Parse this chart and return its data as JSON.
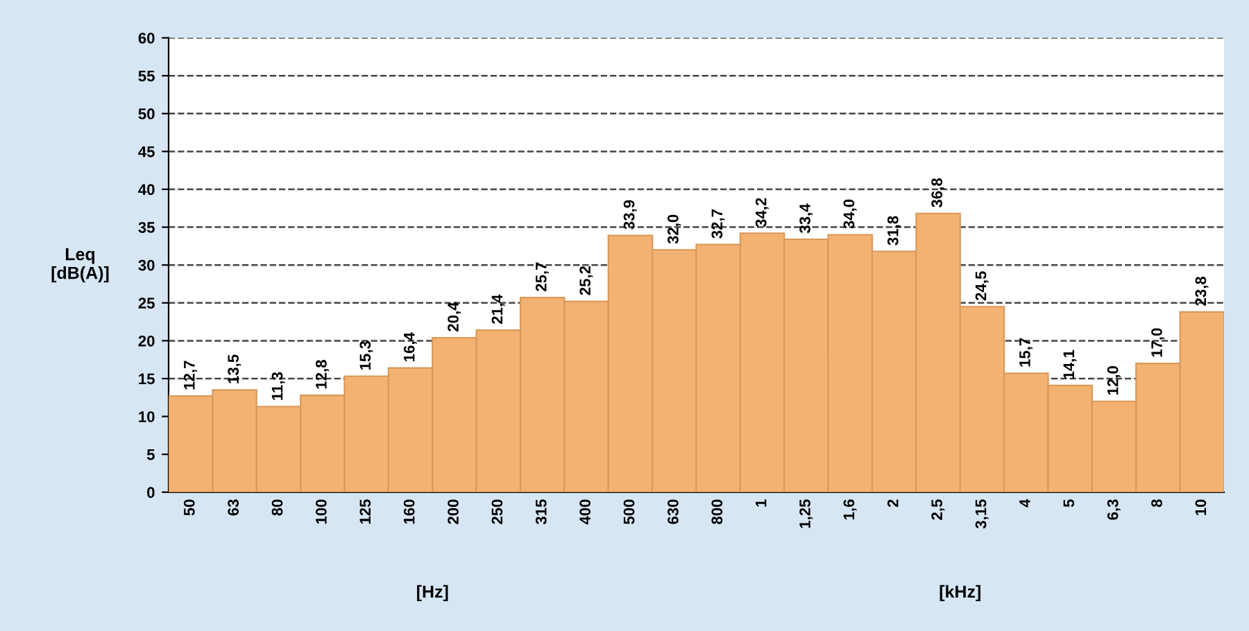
{
  "chart_data": {
    "type": "bar",
    "ylabel": "Leq\n[dB(A)]",
    "annotations": [
      "[Hz]",
      "[kHz]"
    ],
    "categories": [
      "50",
      "63",
      "80",
      "100",
      "125",
      "160",
      "200",
      "250",
      "315",
      "400",
      "500",
      "630",
      "800",
      "1",
      "1,25",
      "1,6",
      "2",
      "2,5",
      "3,15",
      "4",
      "5",
      "6,3",
      "8",
      "10"
    ],
    "values": [
      12.7,
      13.5,
      11.3,
      12.8,
      15.3,
      16.4,
      20.4,
      21.4,
      25.7,
      25.2,
      33.9,
      32.0,
      32.7,
      34.2,
      33.4,
      34.0,
      31.8,
      36.8,
      24.5,
      15.7,
      14.1,
      12.0,
      17.0,
      23.8
    ],
    "value_labels": [
      "12,7",
      "13,5",
      "11,3",
      "12,8",
      "15,3",
      "16,4",
      "20,4",
      "21,4",
      "25,7",
      "25,2",
      "33,9",
      "32,0",
      "32,7",
      "34,2",
      "33,4",
      "34,0",
      "31,8",
      "36,8",
      "24,5",
      "15,7",
      "14,1",
      "12,0",
      "17,0",
      "23,8"
    ],
    "color": "#f4b272",
    "ylim": [
      0,
      60
    ],
    "yticks": [
      0,
      5,
      10,
      15,
      20,
      25,
      30,
      35,
      40,
      45,
      50,
      55,
      60
    ],
    "grid": "y",
    "line_style": "dashed"
  }
}
